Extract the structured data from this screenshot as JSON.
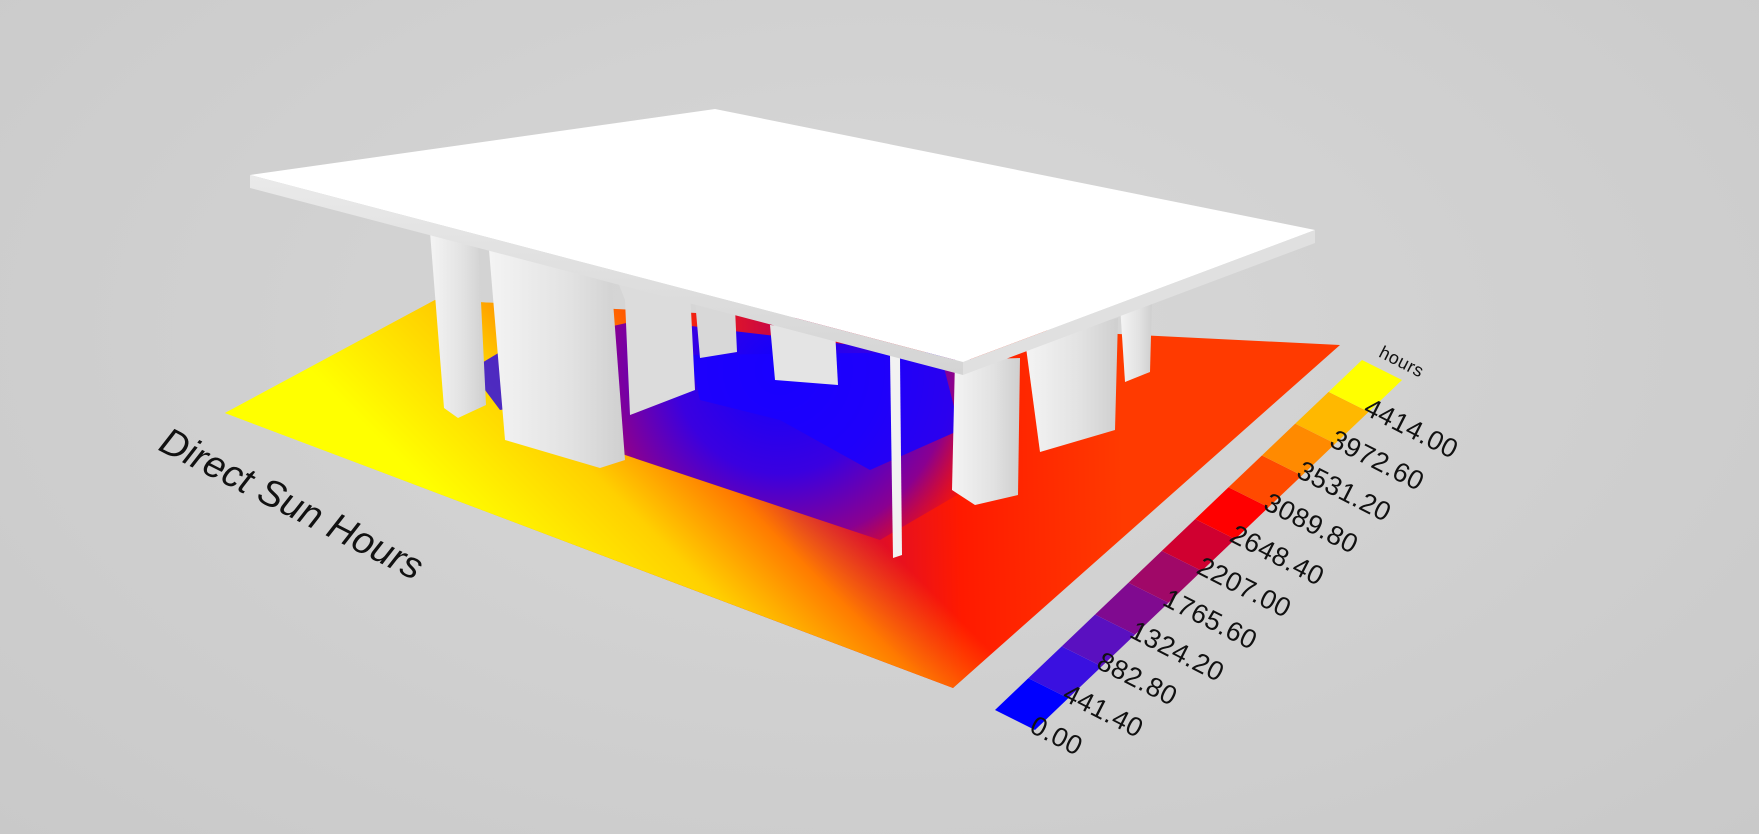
{
  "title": "Direct Sun Hours",
  "legend": {
    "unit": "hours",
    "values": [
      "0.00",
      "441.40",
      "882.80",
      "1324.20",
      "1765.60",
      "2207.00",
      "2648.40",
      "3089.80",
      "3531.20",
      "3972.60",
      "4414.00"
    ],
    "colors": [
      "#0000ff",
      "#3a10e0",
      "#5a10c0",
      "#800a90",
      "#a00868",
      "#d00030",
      "#ff0000",
      "#ff4a00",
      "#ff8a00",
      "#ffb800",
      "#ffff00"
    ]
  },
  "scene": {
    "background": "#d0d0d0",
    "building_color": "#ffffff",
    "shade_color": "#e6e6e6"
  }
}
